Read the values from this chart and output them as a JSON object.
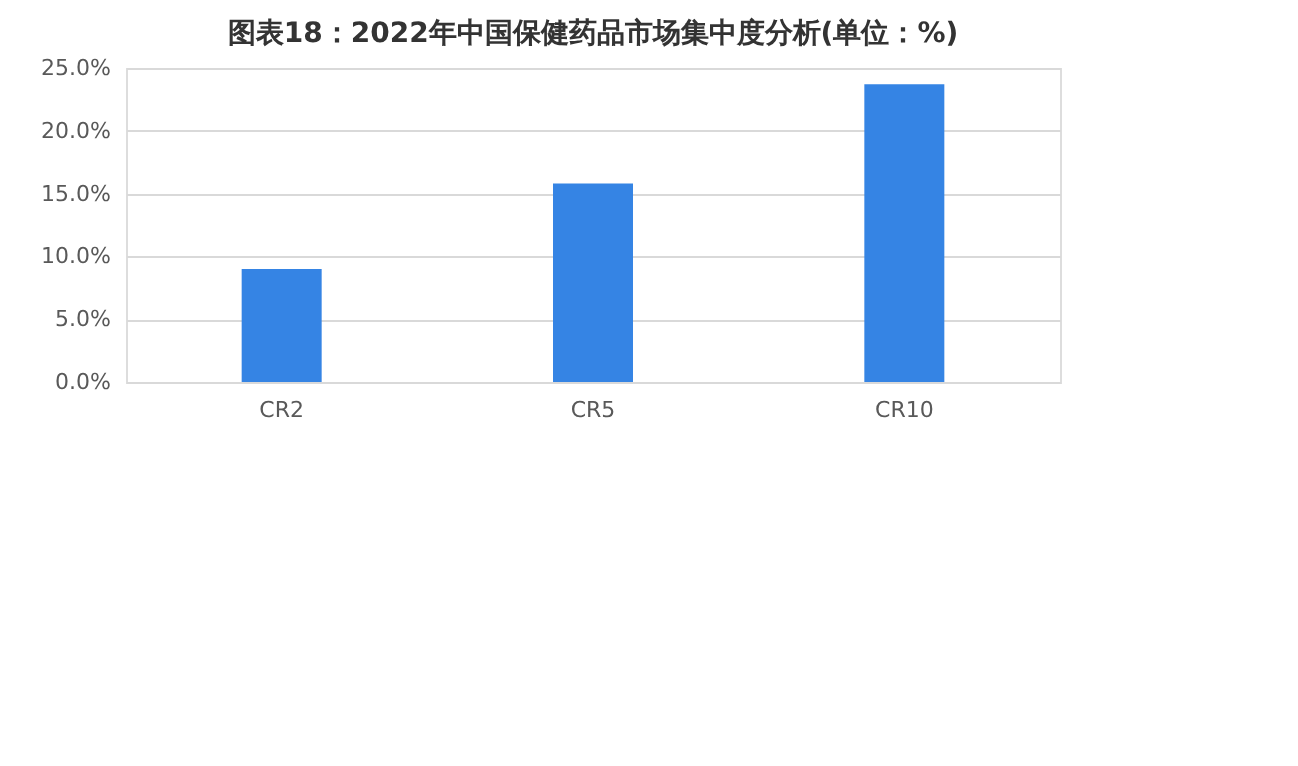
{
  "chart_data": {
    "type": "bar",
    "title": "图表18：2022年中国保健药品市场集中度分析(单位：%)",
    "categories": [
      "CR2",
      "CR5",
      "CR10"
    ],
    "values": [
      9.0,
      15.8,
      23.7
    ],
    "color": "#3584e4",
    "ylim": [
      0,
      25
    ],
    "yticks": [
      {
        "value": 0,
        "label": "0.0%"
      },
      {
        "value": 5,
        "label": "5.0%"
      },
      {
        "value": 10,
        "label": "10.0%"
      },
      {
        "value": 15,
        "label": "15.0%"
      },
      {
        "value": 20,
        "label": "20.0%"
      },
      {
        "value": 25,
        "label": "25.0%"
      }
    ],
    "grid": "y"
  }
}
